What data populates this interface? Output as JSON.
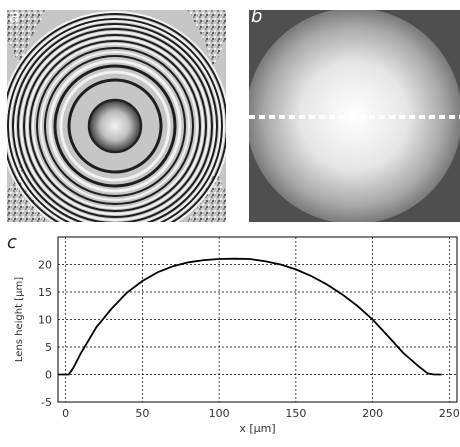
{
  "panels": {
    "a": {
      "label": "a"
    },
    "b": {
      "label": "b"
    },
    "c": {
      "label": "c"
    }
  },
  "chart_data": {
    "type": "line",
    "xlabel": "x [µm]",
    "ylabel": "Lens height [µm]",
    "xlim": [
      -5,
      255
    ],
    "ylim": [
      -5,
      25
    ],
    "xticks": [
      0,
      50,
      100,
      150,
      200,
      250
    ],
    "yticks": [
      -5,
      0,
      5,
      10,
      15,
      20
    ],
    "grid": true,
    "series": [
      {
        "x": [
          -5,
          2,
          5,
          10,
          20,
          30,
          40,
          50,
          60,
          70,
          80,
          90,
          100,
          110,
          120,
          130,
          140,
          150,
          160,
          170,
          180,
          190,
          200,
          210,
          220,
          230,
          236,
          240,
          245
        ],
        "y": [
          0,
          0,
          1.2,
          3.9,
          8.6,
          12.0,
          14.9,
          17.0,
          18.6,
          19.7,
          20.4,
          20.8,
          21.0,
          21.05,
          21.0,
          20.6,
          20.0,
          19.1,
          17.9,
          16.4,
          14.6,
          12.5,
          10.0,
          7.0,
          3.9,
          1.5,
          0.2,
          0,
          0
        ]
      }
    ]
  }
}
